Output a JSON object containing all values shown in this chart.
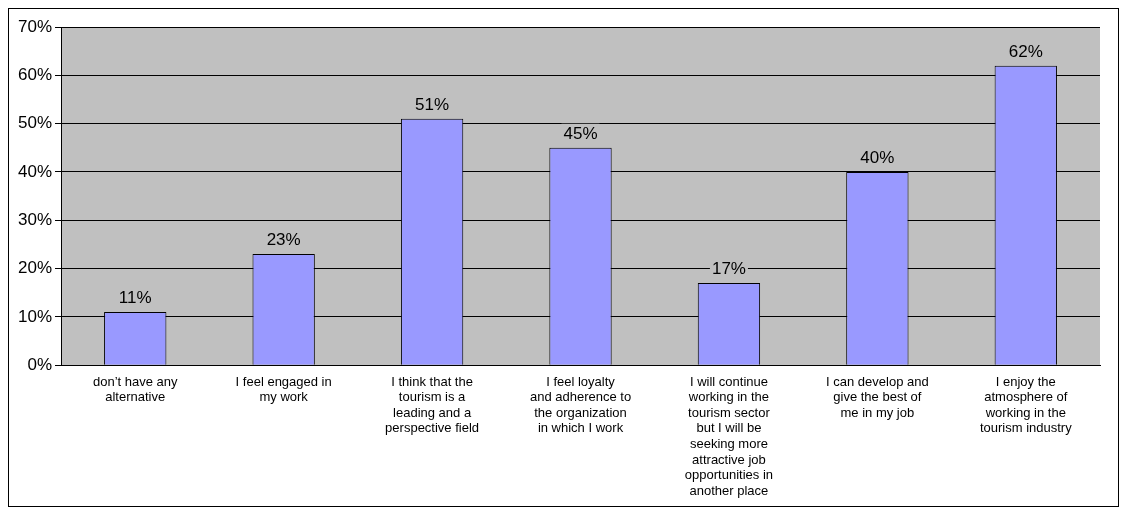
{
  "chart_data": {
    "type": "bar",
    "categories": [
      "don’t have any alternative",
      "I feel engaged in my work",
      "I think that the tourism is a leading and a perspective field",
      "I feel loyalty and adherence to the organization in which I work",
      "I will continue working in the tourism sector but I will be seeking more attractive job opportunities in another place",
      "I can develop and give the best of me in my job",
      "I enjoy the atmosphere of working in the tourism industry"
    ],
    "values": [
      11,
      23,
      51,
      45,
      17,
      40,
      62
    ],
    "value_labels": [
      "11%",
      "23%",
      "51%",
      "45%",
      "17%",
      "40%",
      "62%"
    ],
    "color": "#9999ff",
    "ylim": [
      0,
      70
    ],
    "yticks": [
      {
        "value": 0,
        "label": "0%"
      },
      {
        "value": 10,
        "label": "10%"
      },
      {
        "value": 20,
        "label": "20%"
      },
      {
        "value": 30,
        "label": "30%"
      },
      {
        "value": 40,
        "label": "40%"
      },
      {
        "value": 50,
        "label": "50%"
      },
      {
        "value": 60,
        "label": "60%"
      },
      {
        "value": 70,
        "label": "70%"
      }
    ],
    "grid": "y",
    "legend": false
  }
}
